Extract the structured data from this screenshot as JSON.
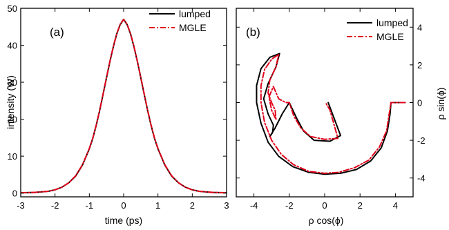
{
  "chart_data": [
    {
      "type": "line",
      "panel_label": "(a)",
      "xlabel": "time (ps)",
      "ylabel": "intensity (W)",
      "xlim": [
        -3,
        3
      ],
      "ylim": [
        -1,
        50
      ],
      "xticks": [
        -3,
        -2,
        -1,
        0,
        1,
        2,
        3
      ],
      "yticks": [
        0,
        10,
        20,
        30,
        40,
        50
      ],
      "legend_position": "top-right",
      "grid": false,
      "series": [
        {
          "name": "lumped",
          "color": "#000000",
          "style": "solid",
          "x": [
            -3.0,
            -2.6,
            -2.2,
            -2.0,
            -1.8,
            -1.6,
            -1.4,
            -1.2,
            -1.0,
            -0.9,
            -0.8,
            -0.7,
            -0.6,
            -0.5,
            -0.4,
            -0.3,
            -0.2,
            -0.1,
            0.0,
            0.1,
            0.2,
            0.3,
            0.4,
            0.5,
            0.6,
            0.7,
            0.8,
            0.9,
            1.0,
            1.2,
            1.4,
            1.6,
            1.8,
            2.0,
            2.2,
            2.6,
            3.0
          ],
          "y": [
            0.1,
            0.2,
            0.5,
            0.9,
            1.6,
            2.8,
            4.6,
            7.6,
            12.0,
            14.8,
            18.3,
            22.3,
            26.7,
            31.2,
            35.6,
            39.6,
            43.1,
            45.6,
            47.0,
            45.6,
            43.1,
            39.6,
            35.6,
            31.2,
            26.7,
            22.3,
            18.3,
            14.8,
            12.0,
            7.6,
            4.6,
            2.8,
            1.6,
            0.9,
            0.5,
            0.2,
            0.1
          ]
        },
        {
          "name": "MGLE",
          "color": "#e0001a",
          "style": "dashdot",
          "x": [
            -3.0,
            -2.6,
            -2.2,
            -2.0,
            -1.8,
            -1.6,
            -1.4,
            -1.2,
            -1.0,
            -0.9,
            -0.8,
            -0.7,
            -0.6,
            -0.5,
            -0.4,
            -0.3,
            -0.2,
            -0.1,
            0.0,
            0.1,
            0.2,
            0.3,
            0.4,
            0.5,
            0.6,
            0.7,
            0.8,
            0.9,
            1.0,
            1.2,
            1.4,
            1.6,
            1.8,
            2.0,
            2.2,
            2.6,
            3.0
          ],
          "y": [
            0.1,
            0.2,
            0.5,
            0.9,
            1.6,
            2.8,
            4.7,
            7.7,
            12.1,
            14.9,
            18.4,
            22.4,
            26.8,
            31.3,
            35.7,
            39.7,
            43.2,
            45.7,
            47.0,
            45.7,
            43.2,
            39.7,
            35.7,
            31.3,
            26.8,
            22.4,
            18.4,
            14.9,
            12.1,
            7.7,
            4.7,
            2.8,
            1.6,
            0.9,
            0.5,
            0.2,
            0.1
          ]
        }
      ]
    },
    {
      "type": "line",
      "panel_label": "(b)",
      "xlabel": "ρ cos(ϕ)",
      "ylabel": "ρ sin(ϕ)",
      "xlim": [
        -5,
        5
      ],
      "ylim": [
        -5,
        5
      ],
      "xticks": [
        -4,
        -2,
        0,
        2,
        4
      ],
      "yticks": [
        -4,
        -2,
        0,
        2,
        4
      ],
      "y_axis_side": "right",
      "legend_position": "top-right",
      "grid": false,
      "series": [
        {
          "name": "lumped",
          "color": "#000000",
          "style": "solid",
          "x": [
            4.55,
            3.75,
            3.7,
            3.55,
            3.2,
            2.6,
            1.8,
            0.9,
            0.0,
            -0.9,
            -1.8,
            -2.6,
            -3.2,
            -3.6,
            -3.85,
            -3.85,
            -3.6,
            -3.1,
            -2.55,
            -2.75,
            -3.2,
            -3.45,
            -3.2,
            -2.9,
            -2.95,
            -3.1,
            -2.8,
            -2.4,
            -2.0,
            -1.6,
            -1.2,
            -0.6,
            0.3,
            0.9,
            0.2
          ],
          "y": [
            0.0,
            0.0,
            -0.6,
            -1.5,
            -2.4,
            -3.1,
            -3.55,
            -3.75,
            -3.8,
            -3.7,
            -3.4,
            -2.85,
            -2.1,
            -1.1,
            0.0,
            0.9,
            1.8,
            2.4,
            2.6,
            1.9,
            1.0,
            0.2,
            -0.6,
            -1.2,
            -1.6,
            -1.8,
            -1.35,
            -0.6,
            0.0,
            -0.8,
            -1.5,
            -2.0,
            -2.05,
            -1.75,
            0.0
          ]
        },
        {
          "name": "MGLE",
          "color": "#e0001a",
          "style": "dashdot",
          "x": [
            4.55,
            3.75,
            3.65,
            3.5,
            3.1,
            2.5,
            1.7,
            0.8,
            0.0,
            -0.9,
            -1.75,
            -2.45,
            -3.0,
            -3.4,
            -3.6,
            -3.6,
            -3.4,
            -3.0,
            -2.6,
            -2.75,
            -3.1,
            -3.2,
            -3.0,
            -2.8,
            -2.75,
            -3.0,
            -3.15,
            -2.9,
            -2.6,
            -2.2,
            -2.0,
            -1.75,
            -1.35,
            -0.8,
            0.0,
            0.75,
            0.3,
            0.05
          ],
          "y": [
            0.0,
            0.0,
            -0.6,
            -1.5,
            -2.35,
            -3.05,
            -3.45,
            -3.7,
            -3.75,
            -3.65,
            -3.3,
            -2.75,
            -2.0,
            -1.05,
            0.0,
            0.9,
            1.75,
            2.3,
            2.55,
            1.9,
            1.2,
            0.5,
            0.0,
            -0.4,
            -0.9,
            -0.4,
            0.3,
            0.85,
            0.2,
            0.0,
            0.0,
            -0.7,
            -1.35,
            -1.8,
            -1.95,
            -1.9,
            -0.4,
            0.0
          ]
        }
      ]
    }
  ]
}
